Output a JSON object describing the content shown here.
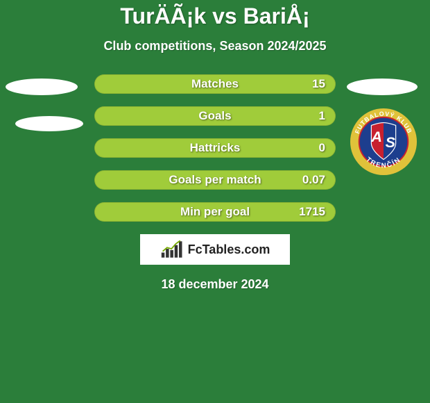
{
  "page": {
    "background_color": "#2b7e3a",
    "text_color": "#ffffff"
  },
  "header": {
    "title": "TurÄÃ¡k vs BariÅ¡",
    "subtitle": "Club competitions, Season 2024/2025"
  },
  "stats": {
    "bar_color": "#a0cc3a",
    "bar_border_color": "rgba(0,0,0,0.12)",
    "label_color": "#ffffff",
    "rows": [
      {
        "label": "Matches",
        "value": "15"
      },
      {
        "label": "Goals",
        "value": "1"
      },
      {
        "label": "Hattricks",
        "value": "0"
      },
      {
        "label": "Goals per match",
        "value": "0.07"
      },
      {
        "label": "Min per goal",
        "value": "1715"
      }
    ]
  },
  "left_side": {
    "oval1_color": "#ffffff",
    "oval2_color": "#ffffff"
  },
  "right_side": {
    "oval_color": "#ffffff",
    "crest": {
      "outer_ring_color": "#e0c23a",
      "ring_text_color": "#ffffff",
      "ring_text_top": "FUTBALOVÝ KLUB",
      "ring_text_bottom": "TRENČÍN",
      "inner_circle_color": "#1d3e8e",
      "inner_border_color": "#c8202f",
      "shield_red": "#c8202f",
      "shield_blue": "#1d3e8e",
      "letters_a": "A",
      "letters_s": "S",
      "letters_color": "#ffffff"
    }
  },
  "footer": {
    "brand_text": "FcTables.com",
    "brand_text_color": "#222222",
    "brand_bg_color": "#ffffff",
    "date": "18 december 2024"
  }
}
